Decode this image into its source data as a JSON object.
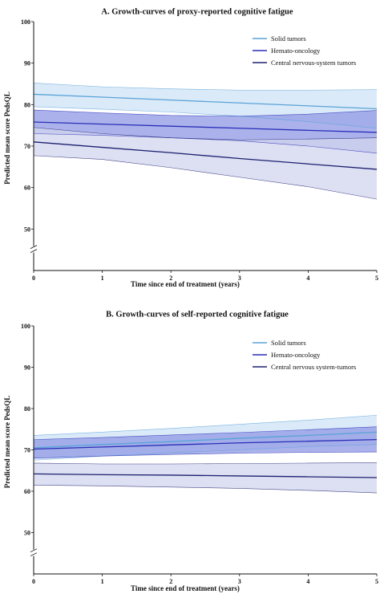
{
  "chart_data": [
    {
      "type": "line",
      "title": "A. Growth-curves of proxy-reported cognitive fatigue",
      "xlabel": "Time since end of treatment (years)",
      "ylabel": "Predicted mean score PedsQL",
      "xlim": [
        0,
        5
      ],
      "ylim": [
        40,
        100
      ],
      "xticks": [
        0,
        1,
        2,
        3,
        4,
        5
      ],
      "yticks": [
        50,
        60,
        70,
        80,
        90,
        100
      ],
      "grid": false,
      "legend_position": "top-right",
      "series": [
        {
          "name": "Solid tumors",
          "color": "#5aa3d8",
          "fill": "#cfe3f6",
          "x": [
            0,
            1,
            2,
            3,
            4,
            5
          ],
          "mean": [
            82.5,
            81.8,
            81.1,
            80.4,
            79.7,
            79.0
          ],
          "lower": [
            79.5,
            78.9,
            78.2,
            77.2,
            75.9,
            74.3
          ],
          "upper": [
            85.2,
            84.3,
            83.8,
            83.5,
            83.5,
            83.6
          ]
        },
        {
          "name": "Hemato-oncology",
          "color": "#2a2fb8",
          "fill": "#8f98e4",
          "x": [
            0,
            1,
            2,
            3,
            4,
            5
          ],
          "mean": [
            75.8,
            75.3,
            74.8,
            74.3,
            73.8,
            73.3
          ],
          "lower": [
            73.0,
            72.6,
            72.0,
            71.3,
            70.0,
            68.3
          ],
          "upper": [
            78.7,
            78.0,
            77.4,
            77.2,
            77.7,
            78.6
          ]
        },
        {
          "name": "Central nervous-system tumors",
          "color": "#1d2170",
          "fill": "#d2d4ee",
          "x": [
            0,
            1,
            2,
            3,
            4,
            5
          ],
          "mean": [
            71.0,
            69.7,
            68.4,
            67.0,
            65.7,
            64.4
          ],
          "lower": [
            67.7,
            66.8,
            64.8,
            62.5,
            60.2,
            57.2
          ],
          "upper": [
            74.5,
            73.0,
            72.0,
            71.5,
            71.7,
            72.0
          ]
        }
      ]
    },
    {
      "type": "line",
      "title": "B. Growth-curves of self-reported cognitive fatigue",
      "xlabel": "Time since end of treatment (years)",
      "ylabel": "Predicted mean score PedsQL",
      "xlim": [
        0,
        5
      ],
      "ylim": [
        40,
        100
      ],
      "xticks": [
        0,
        1,
        2,
        3,
        4,
        5
      ],
      "yticks": [
        50,
        60,
        70,
        80,
        90,
        100
      ],
      "grid": false,
      "legend_position": "top-right",
      "series": [
        {
          "name": "Solid tumors",
          "color": "#5aa3d8",
          "fill": "#cfe3f6",
          "x": [
            0,
            1,
            2,
            3,
            4,
            5
          ],
          "mean": [
            70.5,
            71.3,
            72.0,
            72.8,
            73.5,
            74.3
          ],
          "lower": [
            67.5,
            68.5,
            69.3,
            70.0,
            70.8,
            71.3
          ],
          "upper": [
            73.5,
            74.3,
            75.2,
            76.2,
            77.2,
            78.4
          ]
        },
        {
          "name": "Hemato-oncology",
          "color": "#2a2fb8",
          "fill": "#8f98e4",
          "x": [
            0,
            1,
            2,
            3,
            4,
            5
          ],
          "mean": [
            70.2,
            70.7,
            71.2,
            71.7,
            72.1,
            72.5
          ],
          "lower": [
            68.0,
            68.5,
            68.9,
            69.2,
            69.4,
            69.5
          ],
          "upper": [
            72.5,
            73.0,
            73.6,
            74.2,
            74.9,
            75.6
          ]
        },
        {
          "name": "Central nervous system-tumors",
          "color": "#1d2170",
          "fill": "#d2d4ee",
          "x": [
            0,
            1,
            2,
            3,
            4,
            5
          ],
          "mean": [
            64.2,
            64.0,
            63.9,
            63.7,
            63.5,
            63.3
          ],
          "lower": [
            61.5,
            61.3,
            61.0,
            60.7,
            60.2,
            59.6
          ],
          "upper": [
            66.8,
            66.6,
            66.6,
            66.7,
            66.8,
            66.9
          ]
        }
      ]
    }
  ]
}
